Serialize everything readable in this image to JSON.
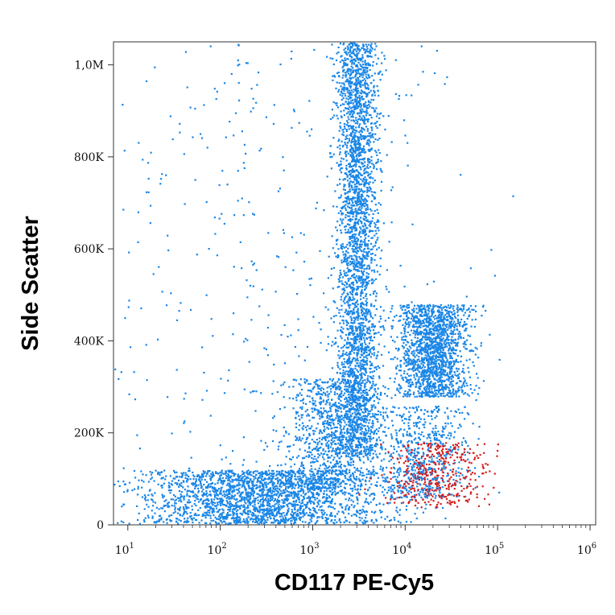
{
  "chart_data": {
    "type": "scatter",
    "title": "",
    "xlabel": "CD117 PE-Cy5",
    "ylabel": "Side Scatter",
    "x_scale": "log",
    "xlim": [
      7,
      1150000
    ],
    "ylim": [
      0,
      1050000
    ],
    "grid": false,
    "legend": "none",
    "x_ticks": [
      {
        "value": 10,
        "base": "10",
        "exp": "1"
      },
      {
        "value": 100,
        "base": "10",
        "exp": "2"
      },
      {
        "value": 1000,
        "base": "10",
        "exp": "3"
      },
      {
        "value": 10000,
        "base": "10",
        "exp": "4"
      },
      {
        "value": 100000,
        "base": "10",
        "exp": "5"
      },
      {
        "value": 1000000,
        "base": "10",
        "exp": "6"
      }
    ],
    "y_ticks": [
      {
        "value": 0,
        "label": "0"
      },
      {
        "value": 200000,
        "label": "200K"
      },
      {
        "value": 400000,
        "label": "400K"
      },
      {
        "value": 600000,
        "label": "600K"
      },
      {
        "value": 800000,
        "label": "800K"
      },
      {
        "value": 1000000,
        "label": "1,0M"
      }
    ],
    "series": [
      {
        "color": "#1a86e6",
        "description": "all events: dense population across lower region rising into tall column near 3x10^3, plus a lobe near 1-5x10^4 at 300-500K",
        "density_regions": [
          {
            "x_center": 3000,
            "x_spread_decades": 0.16,
            "y_range": [
              150000,
              1050000
            ],
            "weight": 0.34
          },
          {
            "x_center": 20000,
            "x_spread_decades": 0.28,
            "y_range": [
              280000,
              480000
            ],
            "weight": 0.18
          },
          {
            "x_center": 300,
            "x_spread_decades": 0.9,
            "y_range": [
              0,
              120000
            ],
            "weight": 0.26
          },
          {
            "x_center": 1500,
            "x_spread_decades": 0.35,
            "y_range": [
              80000,
              320000
            ],
            "weight": 0.1
          },
          {
            "x_center": 15000,
            "x_spread_decades": 0.35,
            "y_range": [
              60000,
              260000
            ],
            "weight": 0.07
          },
          {
            "x_center": 300,
            "x_spread_decades": 1.4,
            "y_range": [
              0,
              1050000
            ],
            "weight": 0.05
          }
        ]
      },
      {
        "color": "#d41f1f",
        "description": "CD117-positive gated events",
        "density_regions": [
          {
            "x_center": 22000,
            "x_spread_decades": 0.4,
            "y_range": [
              40000,
              180000
            ],
            "weight": 1.0
          }
        ]
      }
    ]
  }
}
